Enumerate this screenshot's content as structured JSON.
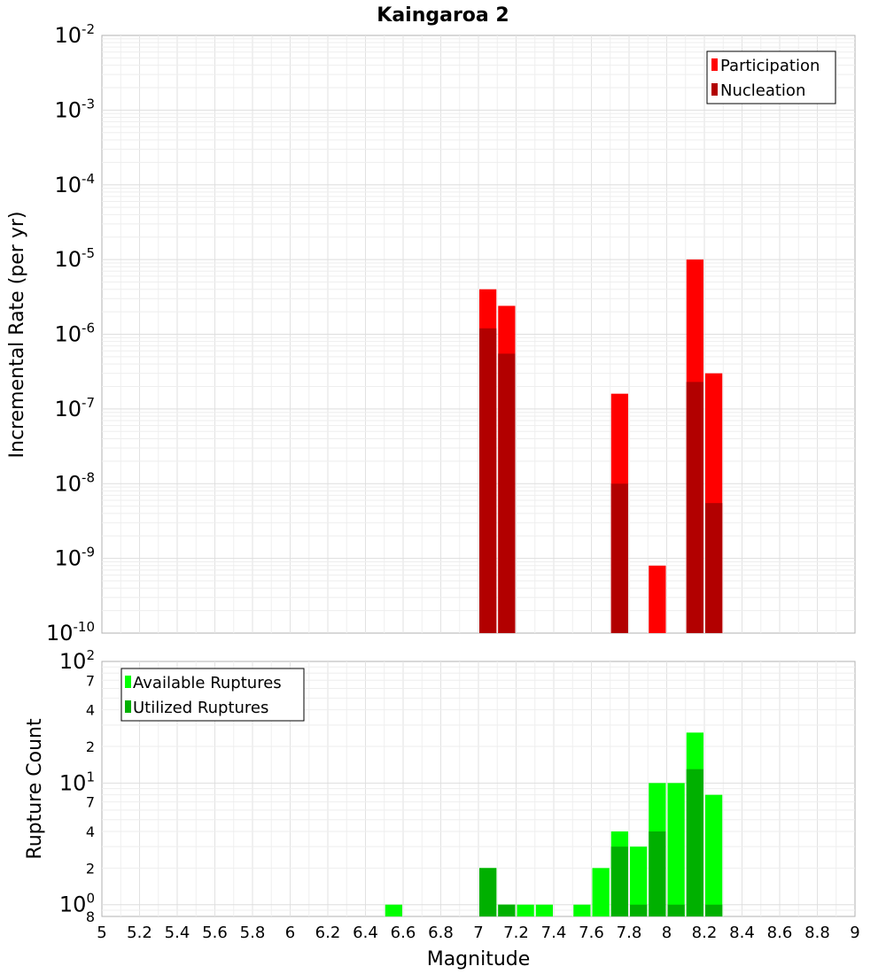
{
  "chart_data": [
    {
      "type": "bar",
      "title": "Kaingaroa 2",
      "xlabel": "",
      "ylabel": "Incremental Rate (per yr)",
      "y_scale": "log",
      "ylim": [
        1e-10,
        0.01
      ],
      "xlim": [
        5,
        9
      ],
      "bin_width": 0.1,
      "grid": true,
      "legend_position": "top-right",
      "y_tick_labels": [
        {
          "base": "10",
          "exp": "-2"
        },
        {
          "base": "10",
          "exp": "-3"
        },
        {
          "base": "10",
          "exp": "-4"
        },
        {
          "base": "10",
          "exp": "-5"
        },
        {
          "base": "10",
          "exp": "-6"
        },
        {
          "base": "10",
          "exp": "-7"
        },
        {
          "base": "10",
          "exp": "-8"
        },
        {
          "base": "10",
          "exp": "-9"
        },
        {
          "base": "10",
          "exp": "-10"
        }
      ],
      "series": [
        {
          "name": "Participation",
          "color": "#ff0000",
          "x": [
            7.05,
            7.15,
            7.75,
            7.95,
            8.15,
            8.25
          ],
          "values": [
            4e-06,
            2.4e-06,
            1.6e-07,
            8e-10,
            1e-05,
            3e-07
          ]
        },
        {
          "name": "Nucleation",
          "color": "#b20000",
          "x": [
            7.05,
            7.15,
            7.75,
            8.15,
            8.25
          ],
          "values": [
            1.2e-06,
            5.5e-07,
            1e-08,
            2.3e-07,
            5.5e-09
          ]
        }
      ]
    },
    {
      "type": "bar",
      "title": "",
      "xlabel": "Magnitude",
      "ylabel": "Rupture Count",
      "y_scale": "log",
      "ylim": [
        0.8,
        100
      ],
      "xlim": [
        5,
        9
      ],
      "bin_width": 0.1,
      "grid": true,
      "legend_position": "top-left",
      "x_tick_labels": [
        "5",
        "5.2",
        "5.4",
        "5.6",
        "5.8",
        "6",
        "6.2",
        "6.4",
        "6.6",
        "6.8",
        "7",
        "7.2",
        "7.4",
        "7.6",
        "7.8",
        "8",
        "8.2",
        "8.4",
        "8.6",
        "8.8",
        "9"
      ],
      "y_tick_labels": [
        {
          "base": "10",
          "exp": "2"
        },
        {
          "base": "",
          "exp": "",
          "minor": "7"
        },
        {
          "base": "",
          "exp": "",
          "minor": "4"
        },
        {
          "base": "",
          "exp": "",
          "minor": "2"
        },
        {
          "base": "10",
          "exp": "1"
        },
        {
          "base": "",
          "exp": "",
          "minor": "7"
        },
        {
          "base": "",
          "exp": "",
          "minor": "4"
        },
        {
          "base": "",
          "exp": "",
          "minor": "2"
        },
        {
          "base": "10",
          "exp": "0"
        },
        {
          "base": "",
          "exp": "",
          "minor": "8"
        }
      ],
      "series": [
        {
          "name": "Available Ruptures",
          "color": "#00ff00",
          "x": [
            6.55,
            7.05,
            7.15,
            7.25,
            7.35,
            7.55,
            7.65,
            7.75,
            7.85,
            7.95,
            8.05,
            8.15,
            8.25
          ],
          "values": [
            1,
            2,
            1,
            1,
            1,
            1,
            2,
            4,
            3,
            10,
            10,
            26,
            8
          ]
        },
        {
          "name": "Utilized Ruptures",
          "color": "#00b000",
          "x": [
            7.05,
            7.15,
            7.75,
            7.85,
            7.95,
            8.05,
            8.15,
            8.25
          ],
          "values": [
            2,
            1,
            3,
            1,
            4,
            1,
            13,
            1
          ]
        }
      ]
    }
  ]
}
